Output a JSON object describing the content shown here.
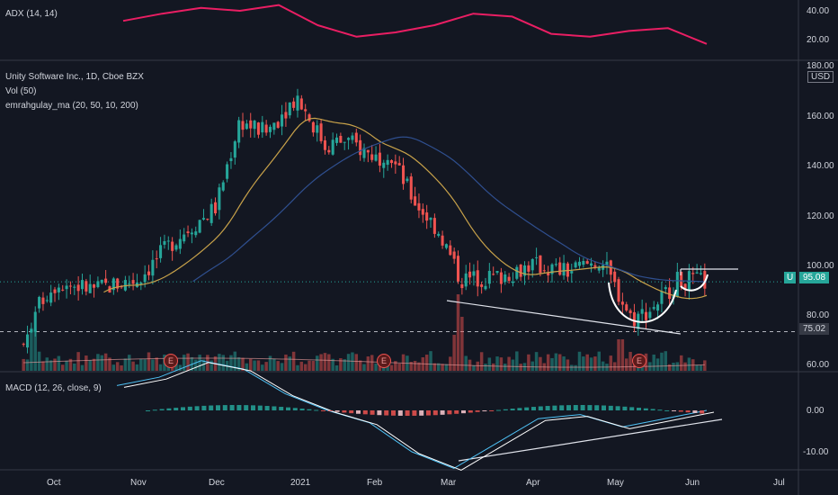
{
  "adx_pane": {
    "label": "ADX (14, 14)",
    "axis_ticks": [
      "40.00",
      "20.00"
    ]
  },
  "main_pane": {
    "title": "Unity Software Inc., 1D, Cboe BZX",
    "indicator_1": "Vol (50)",
    "indicator_2": "emrahgulay_ma (20, 50, 10, 200)",
    "currency": "USD",
    "axis_ticks": [
      "180.00",
      "160.00",
      "140.00",
      "120.00",
      "100.00",
      "80.00",
      "60.00"
    ],
    "price_badge": {
      "symbol": "U",
      "price": "95.08",
      "color": "#26a69a"
    },
    "level_badge": "75.02",
    "earnings_marker": "E"
  },
  "macd_pane": {
    "label": "MACD (12, 26, close, 9)",
    "axis_ticks": [
      "0.00",
      "-10.00"
    ]
  },
  "x_axis": [
    "Oct",
    "Nov",
    "Dec",
    "2021",
    "Feb",
    "Mar",
    "Apr",
    "May",
    "Jun",
    "Jul"
  ],
  "colors": {
    "up": "#26a69a",
    "down": "#ef5350",
    "adx": "#e91e63",
    "ma20": "#c8a24a",
    "ma50": "#2f4f8f",
    "background": "#131722"
  },
  "chart_data": {
    "type": "candlestick",
    "title": "Unity Software Inc., 1D, Cboe BZX",
    "ylabel": "USD",
    "ylim": [
      55,
      180
    ],
    "close_series": {
      "name": "",
      "x": [
        "2020-09-18",
        "2020-09-25",
        "2020-10-01",
        "2020-10-15",
        "2020-11-01",
        "2020-11-15",
        "2020-12-01",
        "2020-12-10",
        "2020-12-20",
        "2021-01-01",
        "2021-01-12",
        "2021-01-20",
        "2021-02-01",
        "2021-02-05",
        "2021-02-15",
        "2021-02-25",
        "2021-03-05",
        "2021-03-20",
        "2021-04-01",
        "2021-04-15",
        "2021-04-28",
        "2021-05-10",
        "2021-05-17",
        "2021-05-28",
        "2021-06-07"
      ],
      "values": [
        70,
        88,
        95,
        92,
        96,
        112,
        125,
        160,
        155,
        170,
        150,
        152,
        145,
        148,
        128,
        115,
        96,
        97,
        102,
        99,
        104,
        80,
        84,
        96,
        95
      ]
    },
    "price_last": 95.08,
    "support_level": 75.02,
    "adx": {
      "axis": [
        "20.00",
        "40.00"
      ],
      "values": [
        33,
        38,
        42,
        40,
        44,
        30,
        22,
        25,
        30,
        38,
        36,
        24,
        22,
        26,
        28,
        17
      ]
    },
    "macd": {
      "axis": [
        "-10.00",
        "0.00"
      ],
      "values": [
        6,
        8,
        12,
        10,
        4,
        0,
        -3,
        -10,
        -14,
        -8,
        -2,
        -1,
        -4,
        -2,
        0
      ]
    }
  }
}
